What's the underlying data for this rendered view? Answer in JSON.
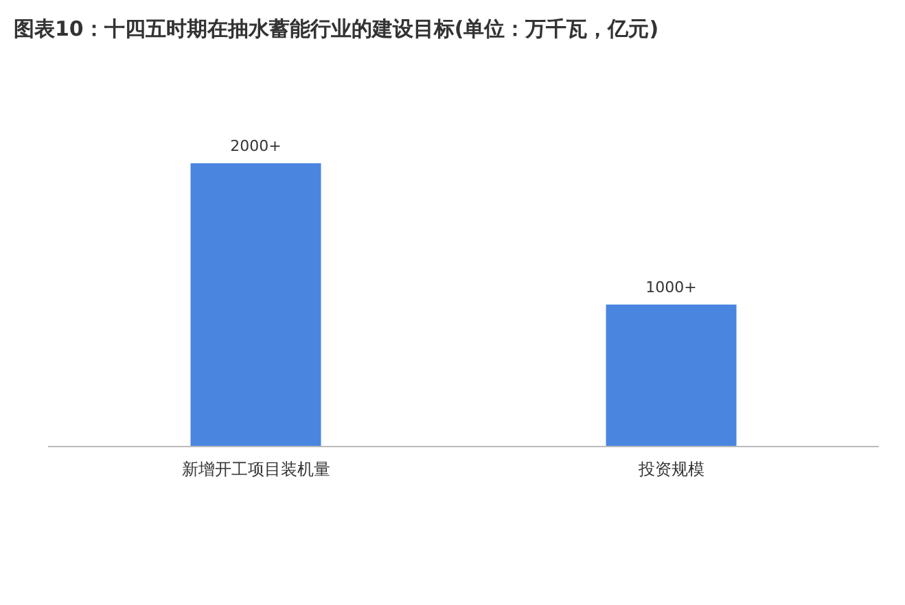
{
  "chart_data": {
    "type": "bar",
    "title": "图表10：十四五时期在抽水蓄能行业的建设目标(单位：万千瓦，亿元)",
    "categories": [
      "新增开工项目装机量",
      "投资规模"
    ],
    "values": [
      2000,
      1000
    ],
    "value_labels": [
      "2000+",
      "1000+"
    ],
    "color": "#4a86e0"
  }
}
